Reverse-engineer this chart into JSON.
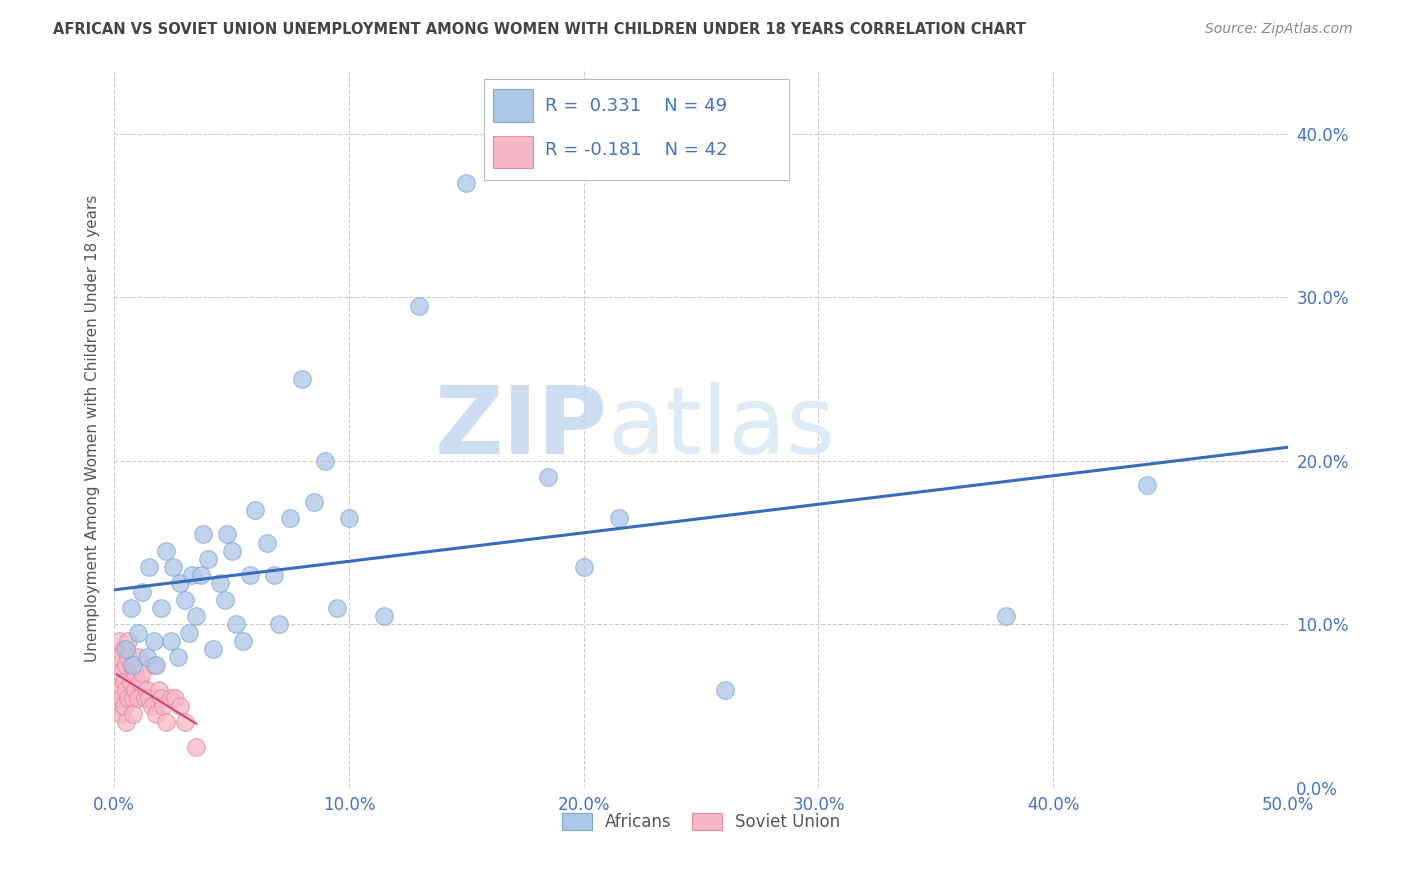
{
  "title": "AFRICAN VS SOVIET UNION UNEMPLOYMENT AMONG WOMEN WITH CHILDREN UNDER 18 YEARS CORRELATION CHART",
  "source": "Source: ZipAtlas.com",
  "ylabel": "Unemployment Among Women with Children Under 18 years",
  "xlim": [
    0.0,
    0.5
  ],
  "ylim": [
    0.0,
    0.44
  ],
  "xticks": [
    0.0,
    0.1,
    0.2,
    0.3,
    0.4,
    0.5
  ],
  "yticks": [
    0.0,
    0.1,
    0.2,
    0.3,
    0.4
  ],
  "africans_R": 0.331,
  "africans_N": 49,
  "soviet_R": -0.181,
  "soviet_N": 42,
  "africans_color": "#aec6e8",
  "soviet_color": "#f5b8c8",
  "africans_edge": "#7aaad4",
  "soviet_edge": "#e888a4",
  "trend_blue": "#3a6bbf",
  "trend_pink": "#cc4477",
  "africans_x": [
    0.005,
    0.007,
    0.008,
    0.01,
    0.012,
    0.014,
    0.015,
    0.017,
    0.018,
    0.02,
    0.022,
    0.024,
    0.025,
    0.027,
    0.028,
    0.03,
    0.032,
    0.033,
    0.035,
    0.037,
    0.038,
    0.04,
    0.042,
    0.045,
    0.047,
    0.048,
    0.05,
    0.052,
    0.055,
    0.058,
    0.06,
    0.065,
    0.068,
    0.07,
    0.075,
    0.08,
    0.085,
    0.09,
    0.095,
    0.1,
    0.115,
    0.13,
    0.15,
    0.185,
    0.2,
    0.215,
    0.26,
    0.38,
    0.44
  ],
  "africans_y": [
    0.085,
    0.11,
    0.075,
    0.095,
    0.12,
    0.08,
    0.135,
    0.09,
    0.075,
    0.11,
    0.145,
    0.09,
    0.135,
    0.08,
    0.125,
    0.115,
    0.095,
    0.13,
    0.105,
    0.13,
    0.155,
    0.14,
    0.085,
    0.125,
    0.115,
    0.155,
    0.145,
    0.1,
    0.09,
    0.13,
    0.17,
    0.15,
    0.13,
    0.1,
    0.165,
    0.25,
    0.175,
    0.2,
    0.11,
    0.165,
    0.105,
    0.295,
    0.37,
    0.19,
    0.135,
    0.165,
    0.06,
    0.105,
    0.185
  ],
  "soviet_x": [
    0.001,
    0.001,
    0.002,
    0.002,
    0.002,
    0.003,
    0.003,
    0.003,
    0.004,
    0.004,
    0.004,
    0.005,
    0.005,
    0.005,
    0.006,
    0.006,
    0.006,
    0.007,
    0.007,
    0.008,
    0.008,
    0.009,
    0.009,
    0.01,
    0.01,
    0.011,
    0.012,
    0.013,
    0.014,
    0.015,
    0.016,
    0.017,
    0.018,
    0.019,
    0.02,
    0.021,
    0.022,
    0.024,
    0.026,
    0.028,
    0.03,
    0.035
  ],
  "soviet_y": [
    0.075,
    0.06,
    0.09,
    0.05,
    0.08,
    0.07,
    0.055,
    0.045,
    0.085,
    0.065,
    0.05,
    0.075,
    0.06,
    0.04,
    0.09,
    0.055,
    0.08,
    0.065,
    0.075,
    0.055,
    0.045,
    0.07,
    0.06,
    0.055,
    0.08,
    0.065,
    0.07,
    0.055,
    0.06,
    0.055,
    0.05,
    0.075,
    0.045,
    0.06,
    0.055,
    0.05,
    0.04,
    0.055,
    0.055,
    0.05,
    0.04,
    0.025
  ],
  "background_color": "#ffffff",
  "watermark_zip": "ZIP",
  "watermark_atlas": "atlas",
  "tick_color": "#4472c4",
  "label_color": "#555555",
  "title_color": "#444444"
}
